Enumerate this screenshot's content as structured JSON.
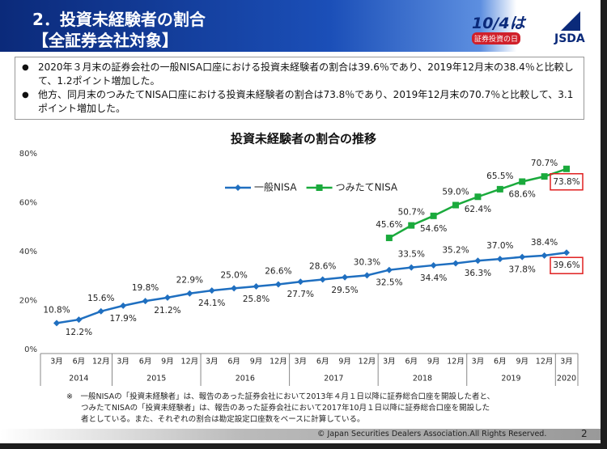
{
  "header": {
    "title": "2．投資未経験者の割合",
    "subtitle": "【全証券会社対象】",
    "logo_date": "10/4は",
    "logo_caption": "証券投資の日",
    "org": "JSDA"
  },
  "bullets": [
    "2020年３月末の証券会社の一般NISA口座における投資未経験者の割合は39.6％であり、2019年12月末の38.4％と比較して、1.2ポイント増加した。",
    "他方、同月末のつみたてNISA口座における投資未経験者の割合は73.8％であり、2019年12月末の70.7％と比較して、3.1ポイント増加した。"
  ],
  "chart_data": {
    "type": "line",
    "title": "投資未経験者の割合の推移",
    "category_groups": [
      {
        "label": "2014",
        "categories": [
          "3月",
          "6月",
          "12月"
        ]
      },
      {
        "label": "2015",
        "categories": [
          "3月",
          "6月",
          "9月",
          "12月"
        ]
      },
      {
        "label": "2016",
        "categories": [
          "3月",
          "6月",
          "9月",
          "12月"
        ]
      },
      {
        "label": "2017",
        "categories": [
          "3月",
          "6月",
          "9月",
          "12月"
        ]
      },
      {
        "label": "2018",
        "categories": [
          "3月",
          "6月",
          "9月",
          "12月"
        ]
      },
      {
        "label": "2019",
        "categories": [
          "3月",
          "6月",
          "9月",
          "12月"
        ]
      },
      {
        "label": "2020",
        "categories": [
          "3月"
        ]
      }
    ],
    "series": [
      {
        "name": "一般NISA",
        "color": "#1f6fc0",
        "marker": "diamond",
        "values": [
          10.8,
          12.2,
          15.6,
          17.9,
          19.8,
          21.2,
          22.9,
          24.1,
          25.0,
          25.8,
          26.6,
          27.7,
          28.6,
          29.5,
          30.3,
          32.5,
          33.5,
          34.4,
          35.2,
          36.3,
          37.0,
          37.8,
          38.4,
          39.6
        ],
        "value_labels": [
          "10.8%",
          "12.2%",
          "15.6%",
          "17.9%",
          "19.8%",
          "21.2%",
          "22.9%",
          "24.1%",
          "25.0%",
          "25.8%",
          "26.6%",
          "27.7%",
          "28.6%",
          "29.5%",
          "30.3%",
          "32.5%",
          "33.5%",
          "34.4%",
          "35.2%",
          "36.3%",
          "37.0%",
          "37.8%",
          "38.4%",
          "39.6%"
        ]
      },
      {
        "name": "つみたてNISA",
        "color": "#1aaa3c",
        "marker": "square",
        "values": [
          null,
          null,
          null,
          null,
          null,
          null,
          null,
          null,
          null,
          null,
          null,
          null,
          null,
          null,
          null,
          45.6,
          50.7,
          54.6,
          59.0,
          62.4,
          65.5,
          68.6,
          70.7,
          73.8
        ],
        "value_labels": [
          null,
          null,
          null,
          null,
          null,
          null,
          null,
          null,
          null,
          null,
          null,
          null,
          null,
          null,
          null,
          "45.6%",
          "50.7%",
          "54.6%",
          "59.0%",
          "62.4%",
          "65.5%",
          "68.6%",
          "70.7%",
          "73.8%"
        ]
      }
    ],
    "ylim": [
      0,
      80
    ],
    "yticks": [
      {
        "value": 0,
        "label": "0%"
      },
      {
        "value": 20,
        "label": "20%"
      },
      {
        "value": 40,
        "label": "40%"
      },
      {
        "value": 60,
        "label": "60%"
      },
      {
        "value": 80,
        "label": "80%"
      }
    ],
    "grid": false,
    "highlight_color": "#e02020"
  },
  "footnote": [
    "※　一般NISAの「投資未経験者」は、報告のあった証券会社において2013年４月１日以降に証券総合口座を開設した者と、",
    "つみたてNISAの「投資未経験者」は、報告のあった証券会社において2017年10月１日以降に証券総合口座を開設した",
    "者としている。また、それぞれの割合は勘定設定口座数をベースに計算している。"
  ],
  "footer": {
    "copyright": "© Japan Securities Dealers Association.All Rights Reserved.",
    "page": "2"
  }
}
